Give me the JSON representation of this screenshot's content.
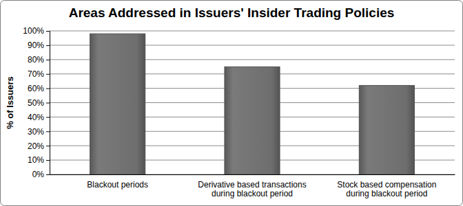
{
  "chart_data": {
    "type": "bar",
    "title": "Areas Addressed in Issuers' Insider Trading Policies",
    "ylabel": "% of Issuers",
    "categories": [
      "Blackout periods",
      "Derivative based transactions\nduring blackout period",
      "Stock based compensation\nduring blackout period"
    ],
    "values": [
      98,
      75,
      62
    ],
    "color": "#6e6e6e",
    "ylim": [
      0,
      100
    ],
    "yticks": [
      {
        "value": 0,
        "label": "0%"
      },
      {
        "value": 10,
        "label": "10%"
      },
      {
        "value": 20,
        "label": "20%"
      },
      {
        "value": 30,
        "label": "30%"
      },
      {
        "value": 40,
        "label": "40%"
      },
      {
        "value": 50,
        "label": "50%"
      },
      {
        "value": 60,
        "label": "60%"
      },
      {
        "value": 70,
        "label": "70%"
      },
      {
        "value": 80,
        "label": "80%"
      },
      {
        "value": 90,
        "label": "90%"
      },
      {
        "value": 100,
        "label": "100%"
      }
    ],
    "grid": true
  }
}
